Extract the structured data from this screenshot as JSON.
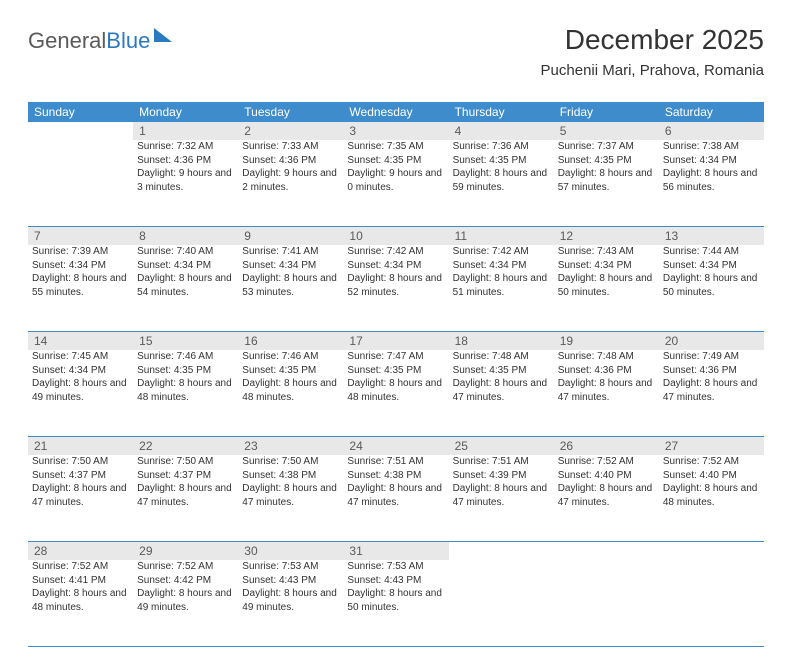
{
  "brand": {
    "part1": "General",
    "part2": "Blue"
  },
  "title": "December 2025",
  "location": "Puchenii Mari, Prahova, Romania",
  "colors": {
    "header_bg": "#3e8ccc",
    "header_text": "#ffffff",
    "daynum_bg": "#e8e8e8",
    "daynum_text": "#5a5a5a",
    "rule": "#3e8ccc",
    "brand_blue": "#2a7ac0",
    "body_text": "#333333"
  },
  "day_labels": [
    "Sunday",
    "Monday",
    "Tuesday",
    "Wednesday",
    "Thursday",
    "Friday",
    "Saturday"
  ],
  "weeks": [
    {
      "nums": [
        "",
        "1",
        "2",
        "3",
        "4",
        "5",
        "6"
      ],
      "cells": [
        {
          "sunrise": "",
          "sunset": "",
          "daylight": ""
        },
        {
          "sunrise": "Sunrise: 7:32 AM",
          "sunset": "Sunset: 4:36 PM",
          "daylight": "Daylight: 9 hours and 3 minutes."
        },
        {
          "sunrise": "Sunrise: 7:33 AM",
          "sunset": "Sunset: 4:36 PM",
          "daylight": "Daylight: 9 hours and 2 minutes."
        },
        {
          "sunrise": "Sunrise: 7:35 AM",
          "sunset": "Sunset: 4:35 PM",
          "daylight": "Daylight: 9 hours and 0 minutes."
        },
        {
          "sunrise": "Sunrise: 7:36 AM",
          "sunset": "Sunset: 4:35 PM",
          "daylight": "Daylight: 8 hours and 59 minutes."
        },
        {
          "sunrise": "Sunrise: 7:37 AM",
          "sunset": "Sunset: 4:35 PM",
          "daylight": "Daylight: 8 hours and 57 minutes."
        },
        {
          "sunrise": "Sunrise: 7:38 AM",
          "sunset": "Sunset: 4:34 PM",
          "daylight": "Daylight: 8 hours and 56 minutes."
        }
      ]
    },
    {
      "nums": [
        "7",
        "8",
        "9",
        "10",
        "11",
        "12",
        "13"
      ],
      "cells": [
        {
          "sunrise": "Sunrise: 7:39 AM",
          "sunset": "Sunset: 4:34 PM",
          "daylight": "Daylight: 8 hours and 55 minutes."
        },
        {
          "sunrise": "Sunrise: 7:40 AM",
          "sunset": "Sunset: 4:34 PM",
          "daylight": "Daylight: 8 hours and 54 minutes."
        },
        {
          "sunrise": "Sunrise: 7:41 AM",
          "sunset": "Sunset: 4:34 PM",
          "daylight": "Daylight: 8 hours and 53 minutes."
        },
        {
          "sunrise": "Sunrise: 7:42 AM",
          "sunset": "Sunset: 4:34 PM",
          "daylight": "Daylight: 8 hours and 52 minutes."
        },
        {
          "sunrise": "Sunrise: 7:42 AM",
          "sunset": "Sunset: 4:34 PM",
          "daylight": "Daylight: 8 hours and 51 minutes."
        },
        {
          "sunrise": "Sunrise: 7:43 AM",
          "sunset": "Sunset: 4:34 PM",
          "daylight": "Daylight: 8 hours and 50 minutes."
        },
        {
          "sunrise": "Sunrise: 7:44 AM",
          "sunset": "Sunset: 4:34 PM",
          "daylight": "Daylight: 8 hours and 50 minutes."
        }
      ]
    },
    {
      "nums": [
        "14",
        "15",
        "16",
        "17",
        "18",
        "19",
        "20"
      ],
      "cells": [
        {
          "sunrise": "Sunrise: 7:45 AM",
          "sunset": "Sunset: 4:34 PM",
          "daylight": "Daylight: 8 hours and 49 minutes."
        },
        {
          "sunrise": "Sunrise: 7:46 AM",
          "sunset": "Sunset: 4:35 PM",
          "daylight": "Daylight: 8 hours and 48 minutes."
        },
        {
          "sunrise": "Sunrise: 7:46 AM",
          "sunset": "Sunset: 4:35 PM",
          "daylight": "Daylight: 8 hours and 48 minutes."
        },
        {
          "sunrise": "Sunrise: 7:47 AM",
          "sunset": "Sunset: 4:35 PM",
          "daylight": "Daylight: 8 hours and 48 minutes."
        },
        {
          "sunrise": "Sunrise: 7:48 AM",
          "sunset": "Sunset: 4:35 PM",
          "daylight": "Daylight: 8 hours and 47 minutes."
        },
        {
          "sunrise": "Sunrise: 7:48 AM",
          "sunset": "Sunset: 4:36 PM",
          "daylight": "Daylight: 8 hours and 47 minutes."
        },
        {
          "sunrise": "Sunrise: 7:49 AM",
          "sunset": "Sunset: 4:36 PM",
          "daylight": "Daylight: 8 hours and 47 minutes."
        }
      ]
    },
    {
      "nums": [
        "21",
        "22",
        "23",
        "24",
        "25",
        "26",
        "27"
      ],
      "cells": [
        {
          "sunrise": "Sunrise: 7:50 AM",
          "sunset": "Sunset: 4:37 PM",
          "daylight": "Daylight: 8 hours and 47 minutes."
        },
        {
          "sunrise": "Sunrise: 7:50 AM",
          "sunset": "Sunset: 4:37 PM",
          "daylight": "Daylight: 8 hours and 47 minutes."
        },
        {
          "sunrise": "Sunrise: 7:50 AM",
          "sunset": "Sunset: 4:38 PM",
          "daylight": "Daylight: 8 hours and 47 minutes."
        },
        {
          "sunrise": "Sunrise: 7:51 AM",
          "sunset": "Sunset: 4:38 PM",
          "daylight": "Daylight: 8 hours and 47 minutes."
        },
        {
          "sunrise": "Sunrise: 7:51 AM",
          "sunset": "Sunset: 4:39 PM",
          "daylight": "Daylight: 8 hours and 47 minutes."
        },
        {
          "sunrise": "Sunrise: 7:52 AM",
          "sunset": "Sunset: 4:40 PM",
          "daylight": "Daylight: 8 hours and 47 minutes."
        },
        {
          "sunrise": "Sunrise: 7:52 AM",
          "sunset": "Sunset: 4:40 PM",
          "daylight": "Daylight: 8 hours and 48 minutes."
        }
      ]
    },
    {
      "nums": [
        "28",
        "29",
        "30",
        "31",
        "",
        "",
        ""
      ],
      "cells": [
        {
          "sunrise": "Sunrise: 7:52 AM",
          "sunset": "Sunset: 4:41 PM",
          "daylight": "Daylight: 8 hours and 48 minutes."
        },
        {
          "sunrise": "Sunrise: 7:52 AM",
          "sunset": "Sunset: 4:42 PM",
          "daylight": "Daylight: 8 hours and 49 minutes."
        },
        {
          "sunrise": "Sunrise: 7:53 AM",
          "sunset": "Sunset: 4:43 PM",
          "daylight": "Daylight: 8 hours and 49 minutes."
        },
        {
          "sunrise": "Sunrise: 7:53 AM",
          "sunset": "Sunset: 4:43 PM",
          "daylight": "Daylight: 8 hours and 50 minutes."
        },
        {
          "sunrise": "",
          "sunset": "",
          "daylight": ""
        },
        {
          "sunrise": "",
          "sunset": "",
          "daylight": ""
        },
        {
          "sunrise": "",
          "sunset": "",
          "daylight": ""
        }
      ]
    }
  ]
}
